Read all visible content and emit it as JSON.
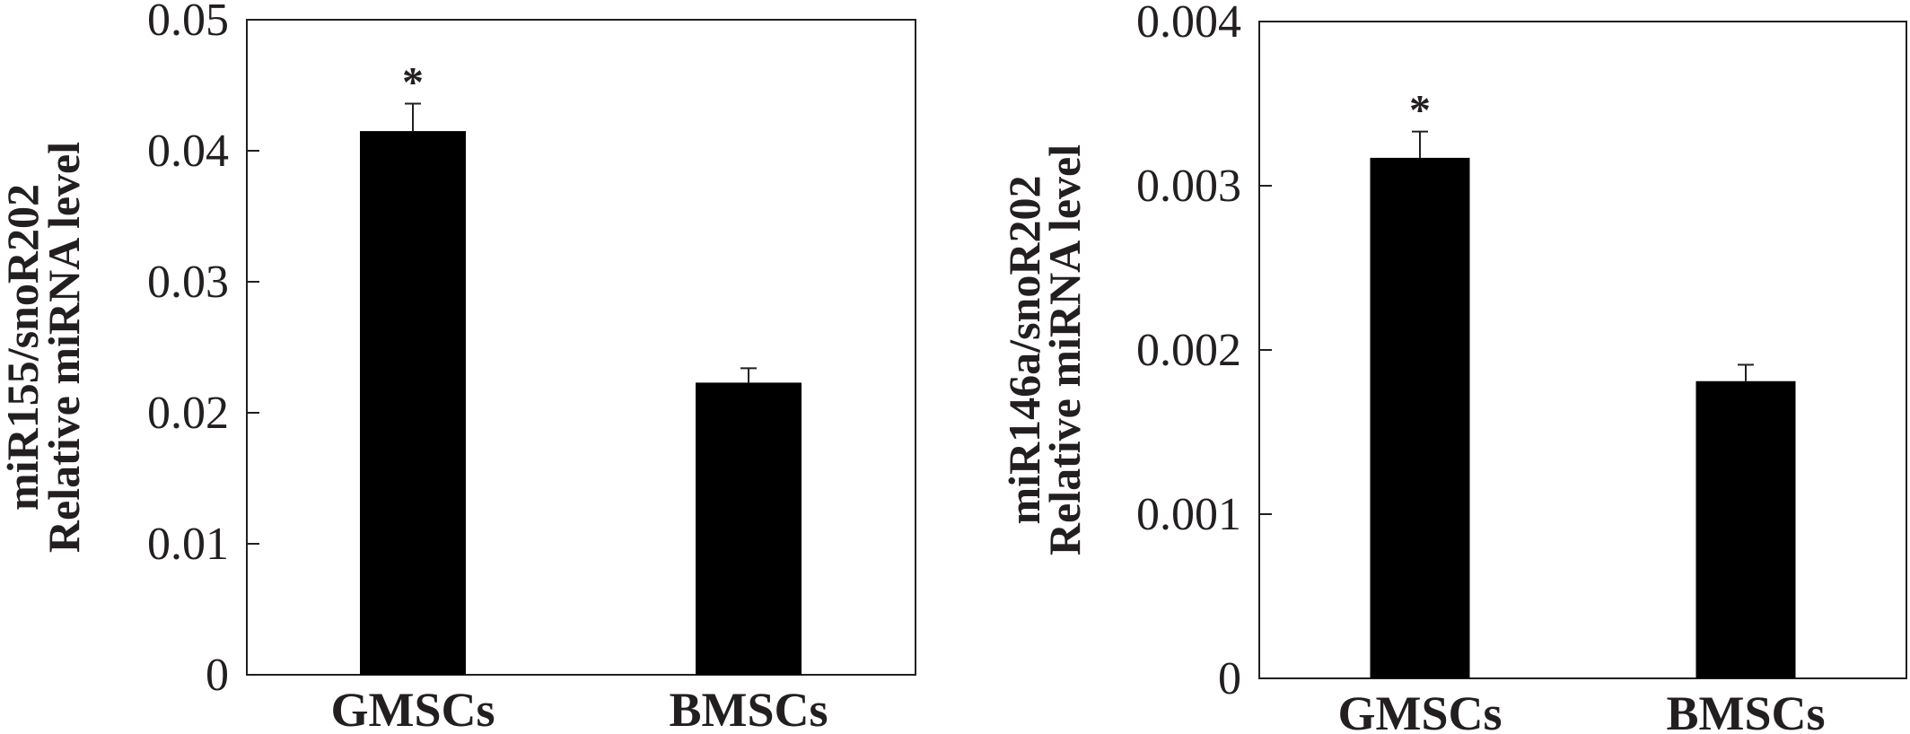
{
  "chart_data": [
    {
      "type": "bar",
      "categories": [
        "GMSCs",
        "BMSCs"
      ],
      "values": [
        0.0415,
        0.0223
      ],
      "errors": [
        0.0021,
        0.0011
      ],
      "annotations": [
        "*",
        ""
      ],
      "ylabel": [
        "miR155/snoR202",
        "Relative miRNA level"
      ],
      "ylim": [
        0,
        0.05
      ],
      "yticks": [
        "0",
        "0.01",
        "0.02",
        "0.03",
        "0.04",
        "0.05"
      ],
      "bar_color": "#000000",
      "grid": false
    },
    {
      "type": "bar",
      "categories": [
        "GMSCs",
        "BMSCs"
      ],
      "values": [
        0.00317,
        0.00181
      ],
      "errors": [
        0.00016,
        0.0001
      ],
      "annotations": [
        "*",
        ""
      ],
      "ylabel": [
        "miR146a/snoR202",
        "Relative miRNA level"
      ],
      "ylim": [
        0,
        0.004
      ],
      "yticks": [
        "0",
        "0.001",
        "0.002",
        "0.003",
        "0.004"
      ],
      "bar_color": "#000000",
      "grid": false
    }
  ]
}
